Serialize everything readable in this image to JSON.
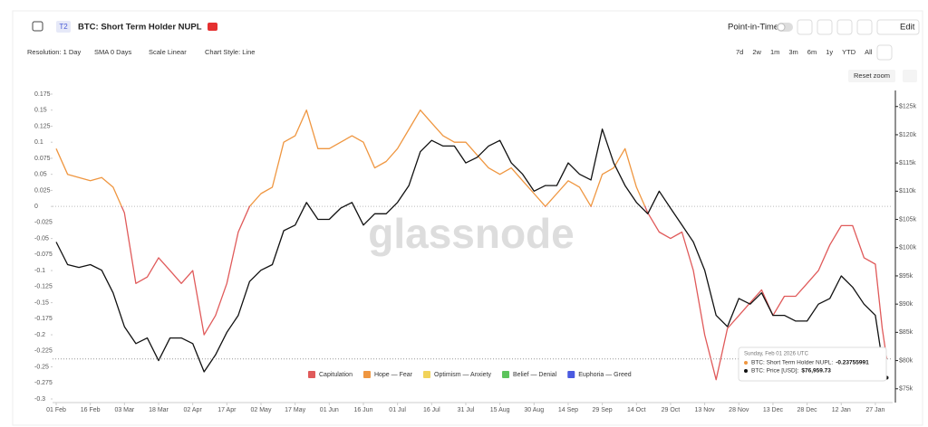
{
  "header": {
    "badge": "T2",
    "title": "BTC: Short Term Holder NUPL",
    "point_in_time": "Point-in-Time",
    "edit": "Edit"
  },
  "controls": {
    "resolution": "Resolution: 1 Day",
    "sma": "SMA 0 Days",
    "scale": "Scale Linear",
    "style": "Chart Style: Line",
    "ranges": [
      "7d",
      "2w",
      "1m",
      "3m",
      "6m",
      "1y",
      "YTD",
      "All"
    ],
    "reset": "Reset zoom"
  },
  "chart_data": {
    "type": "line",
    "watermark": "glassnode",
    "x": [
      0,
      5,
      10,
      15,
      20,
      25,
      30,
      35,
      40,
      45,
      50,
      55,
      60,
      65,
      70,
      75,
      80,
      85,
      90,
      95,
      100,
      105,
      110,
      115,
      120,
      125,
      130,
      135,
      140,
      145,
      150,
      155,
      160,
      165,
      170,
      175,
      180,
      185,
      190,
      195,
      200,
      205,
      210,
      215,
      220,
      225,
      230,
      235,
      240,
      245,
      250,
      255,
      260,
      265,
      270,
      275,
      280,
      285,
      290,
      295,
      300,
      305,
      310,
      315,
      320,
      325,
      330,
      335,
      340,
      345,
      350,
      355,
      360,
      363,
      365
    ],
    "xlim": [
      -1.6,
      367.6
    ],
    "xticks": [
      {
        "value": 0,
        "label": "01 Feb"
      },
      {
        "value": 15,
        "label": "16 Feb"
      },
      {
        "value": 30,
        "label": "03 Mar"
      },
      {
        "value": 45,
        "label": "18 Mar"
      },
      {
        "value": 60,
        "label": "02 Apr"
      },
      {
        "value": 75,
        "label": "17 Apr"
      },
      {
        "value": 90,
        "label": "02 May"
      },
      {
        "value": 105,
        "label": "17 May"
      },
      {
        "value": 120,
        "label": "01 Jun"
      },
      {
        "value": 135,
        "label": "16 Jun"
      },
      {
        "value": 150,
        "label": "01 Jul"
      },
      {
        "value": 165,
        "label": "16 Jul"
      },
      {
        "value": 180,
        "label": "31 Jul"
      },
      {
        "value": 195,
        "label": "15 Aug"
      },
      {
        "value": 210,
        "label": "30 Aug"
      },
      {
        "value": 225,
        "label": "14 Sep"
      },
      {
        "value": 240,
        "label": "29 Sep"
      },
      {
        "value": 255,
        "label": "14 Oct"
      },
      {
        "value": 270,
        "label": "29 Oct"
      },
      {
        "value": 285,
        "label": "13 Nov"
      },
      {
        "value": 300,
        "label": "28 Nov"
      },
      {
        "value": 315,
        "label": "13 Dec"
      },
      {
        "value": 330,
        "label": "28 Dec"
      },
      {
        "value": 345,
        "label": "12 Jan"
      },
      {
        "value": 360,
        "label": "27 Jan"
      }
    ],
    "ylim": [
      -0.3,
      0.175
    ],
    "yticks": [
      0.175,
      0.15,
      0.125,
      0.1,
      0.075,
      0.05,
      0.025,
      0,
      -0.025,
      -0.05,
      -0.075,
      -0.1,
      -0.125,
      -0.15,
      -0.175,
      -0.2,
      -0.225,
      -0.25,
      -0.275,
      -0.3
    ],
    "y2lim": [
      73200,
      127200
    ],
    "y2ticks": [
      {
        "value": 125000,
        "label": "$125k"
      },
      {
        "value": 120000,
        "label": "$120k"
      },
      {
        "value": 115000,
        "label": "$115k"
      },
      {
        "value": 110000,
        "label": "$110k"
      },
      {
        "value": 105000,
        "label": "$105k"
      },
      {
        "value": 100000,
        "label": "$100k"
      },
      {
        "value": 95000,
        "label": "$95k"
      },
      {
        "value": 90000,
        "label": "$90k"
      },
      {
        "value": 85000,
        "label": "$85k"
      },
      {
        "value": 80000,
        "label": "$80k"
      },
      {
        "value": 75000,
        "label": "$75k"
      }
    ],
    "series": [
      {
        "name": "BTC: Short Term Holder NUPL",
        "axis": "y",
        "values": [
          0.09,
          0.05,
          0.045,
          0.04,
          0.045,
          0.03,
          -0.01,
          -0.12,
          -0.11,
          -0.08,
          -0.1,
          -0.12,
          -0.1,
          -0.2,
          -0.17,
          -0.12,
          -0.04,
          0.0,
          0.02,
          0.03,
          0.1,
          0.11,
          0.15,
          0.09,
          0.09,
          0.1,
          0.11,
          0.1,
          0.06,
          0.07,
          0.09,
          0.12,
          0.15,
          0.13,
          0.11,
          0.1,
          0.1,
          0.08,
          0.06,
          0.05,
          0.06,
          0.04,
          0.02,
          0.0,
          0.02,
          0.04,
          0.03,
          0.0,
          0.05,
          0.06,
          0.09,
          0.03,
          -0.01,
          -0.04,
          -0.05,
          -0.04,
          -0.1,
          -0.2,
          -0.27,
          -0.19,
          -0.17,
          -0.15,
          -0.13,
          -0.17,
          -0.14,
          -0.14,
          -0.12,
          -0.1,
          -0.06,
          -0.03,
          -0.03,
          -0.08,
          -0.09,
          -0.19,
          -0.23755991
        ]
      },
      {
        "name": "BTC: Price [USD]",
        "axis": "y2",
        "color": "#111111",
        "values": [
          101000,
          97000,
          96500,
          97000,
          96000,
          92000,
          86000,
          83000,
          84000,
          80000,
          84000,
          84000,
          83000,
          78000,
          81000,
          85000,
          88000,
          94000,
          96000,
          97000,
          103000,
          104000,
          108000,
          105000,
          105000,
          107000,
          108000,
          104000,
          106000,
          106000,
          108000,
          111000,
          117000,
          119000,
          118000,
          118000,
          115000,
          116000,
          118000,
          119000,
          115000,
          113000,
          110000,
          111000,
          111000,
          115000,
          113000,
          112000,
          121000,
          115000,
          111000,
          108000,
          106000,
          110000,
          107000,
          104000,
          101000,
          96000,
          88000,
          86000,
          91000,
          90000,
          92000,
          88000,
          88000,
          87000,
          87000,
          90000,
          91000,
          95000,
          93000,
          90000,
          88000,
          80000,
          76959.73
        ]
      }
    ],
    "zones": [
      {
        "name": "Capitulation",
        "color": "#e05a5a"
      },
      {
        "name": "Hope — Fear",
        "color": "#ef9640"
      },
      {
        "name": "Optimism — Anxiety",
        "color": "#f1d35a"
      },
      {
        "name": "Belief — Denial",
        "color": "#5cc45c"
      },
      {
        "name": "Euphoria — Greed",
        "color": "#4a5ae0"
      }
    ],
    "tooltip": {
      "date": "Sunday, Feb 01 2026 UTC",
      "rows": [
        {
          "label": "BTC: Short Term Holder NUPL:",
          "value": "-0.23755991"
        },
        {
          "label": "BTC: Price [USD]:",
          "value": "$76,959.73"
        }
      ]
    }
  }
}
